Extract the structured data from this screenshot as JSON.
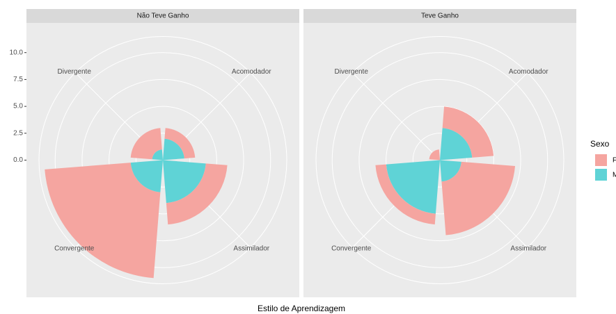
{
  "chart_data": [
    {
      "type": "bar",
      "polar": true,
      "title": "Não Teve Ganho",
      "categories": [
        "Acomodador",
        "Assimilador",
        "Convergente",
        "Divergente"
      ],
      "series": [
        {
          "name": "F",
          "color": "#f5a5a0",
          "values": [
            1,
            2,
            8,
            2
          ]
        },
        {
          "name": "M",
          "color": "#5fd3d6",
          "values": [
            2,
            4,
            3,
            1
          ]
        }
      ],
      "ylim": [
        0,
        11.5
      ],
      "yticks": [
        {
          "value": 0,
          "label": "0.0"
        },
        {
          "value": 2.5,
          "label": "2.5"
        },
        {
          "value": 5,
          "label": "5.0"
        },
        {
          "value": 7.5,
          "label": "7.5"
        },
        {
          "value": 10,
          "label": "10.0"
        }
      ],
      "grid": true,
      "xlabel": "Estilo de Aprendizagem",
      "legend_title": "Sexo"
    },
    {
      "type": "bar",
      "polar": true,
      "title": "Teve Ganho",
      "categories": [
        "Acomodador",
        "Assimilador",
        "Convergente",
        "Divergente"
      ],
      "series": [
        {
          "name": "F",
          "color": "#f5a5a0",
          "values": [
            2,
            5,
            1,
            1
          ]
        },
        {
          "name": "M",
          "color": "#5fd3d6",
          "values": [
            3,
            2,
            5,
            0
          ]
        }
      ],
      "ylim": [
        0,
        11.5
      ],
      "yticks": [
        0,
        2.5,
        5,
        7.5,
        10
      ],
      "grid": true
    }
  ]
}
